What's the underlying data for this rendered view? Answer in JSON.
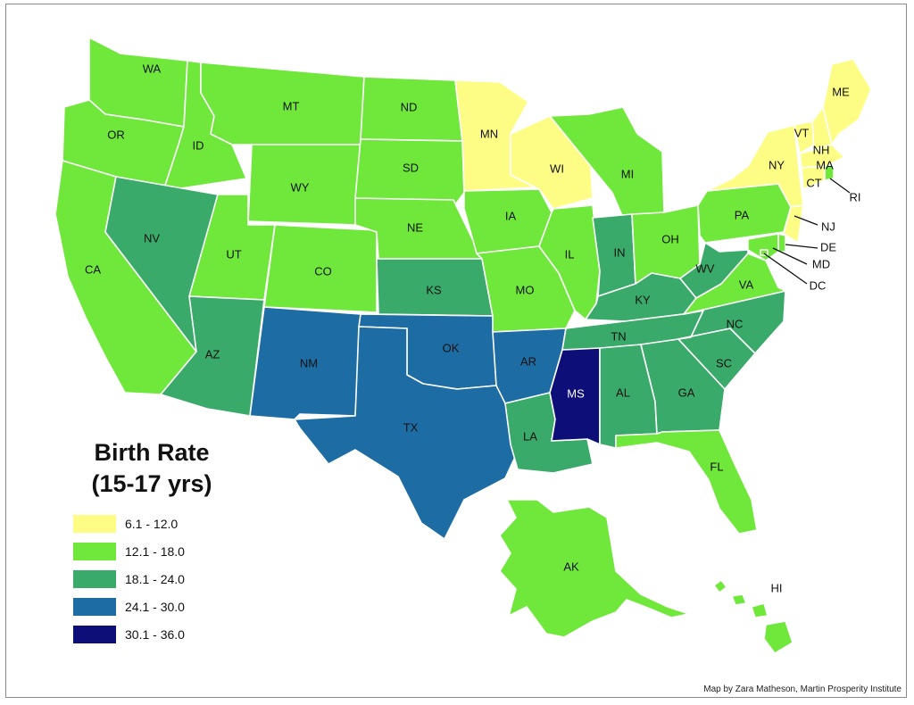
{
  "legend": {
    "title_line1": "Birth Rate",
    "title_line2": "(15-17 yrs)",
    "classes": [
      {
        "label": "6.1 - 12.0",
        "color": "#fdfd86"
      },
      {
        "label": "12.1 - 18.0",
        "color": "#6fe83b"
      },
      {
        "label": "18.1 - 24.0",
        "color": "#3aaa6a"
      },
      {
        "label": "24.1 - 30.0",
        "color": "#1d6da4"
      },
      {
        "label": "30.1 - 36.0",
        "color": "#0e0e78"
      }
    ]
  },
  "credit": "Map by Zara Matheson, Martin Prosperity Institute",
  "states": [
    {
      "code": "WA",
      "class": 1
    },
    {
      "code": "OR",
      "class": 1
    },
    {
      "code": "CA",
      "class": 1
    },
    {
      "code": "ID",
      "class": 1
    },
    {
      "code": "NV",
      "class": 2
    },
    {
      "code": "MT",
      "class": 1
    },
    {
      "code": "WY",
      "class": 1
    },
    {
      "code": "UT",
      "class": 1
    },
    {
      "code": "AZ",
      "class": 2
    },
    {
      "code": "CO",
      "class": 1
    },
    {
      "code": "NM",
      "class": 3
    },
    {
      "code": "ND",
      "class": 1
    },
    {
      "code": "SD",
      "class": 1
    },
    {
      "code": "NE",
      "class": 1
    },
    {
      "code": "KS",
      "class": 2
    },
    {
      "code": "OK",
      "class": 3
    },
    {
      "code": "TX",
      "class": 3
    },
    {
      "code": "MN",
      "class": 0
    },
    {
      "code": "IA",
      "class": 1
    },
    {
      "code": "MO",
      "class": 1
    },
    {
      "code": "AR",
      "class": 3
    },
    {
      "code": "LA",
      "class": 2
    },
    {
      "code": "WI",
      "class": 0
    },
    {
      "code": "IL",
      "class": 1
    },
    {
      "code": "MI",
      "class": 1
    },
    {
      "code": "IN",
      "class": 2
    },
    {
      "code": "OH",
      "class": 1
    },
    {
      "code": "KY",
      "class": 2
    },
    {
      "code": "TN",
      "class": 2
    },
    {
      "code": "MS",
      "class": 4
    },
    {
      "code": "AL",
      "class": 2
    },
    {
      "code": "GA",
      "class": 2
    },
    {
      "code": "FL",
      "class": 1
    },
    {
      "code": "SC",
      "class": 2
    },
    {
      "code": "NC",
      "class": 2
    },
    {
      "code": "VA",
      "class": 1
    },
    {
      "code": "WV",
      "class": 2
    },
    {
      "code": "PA",
      "class": 1
    },
    {
      "code": "NY",
      "class": 0
    },
    {
      "code": "VT",
      "class": 0
    },
    {
      "code": "NH",
      "class": 0
    },
    {
      "code": "ME",
      "class": 0
    },
    {
      "code": "MA",
      "class": 0
    },
    {
      "code": "CT",
      "class": 0
    },
    {
      "code": "RI",
      "class": 1
    },
    {
      "code": "NJ",
      "class": 0
    },
    {
      "code": "DE",
      "class": 1
    },
    {
      "code": "MD",
      "class": 1
    },
    {
      "code": "DC",
      "class": 1
    },
    {
      "code": "AK",
      "class": 1
    },
    {
      "code": "HI",
      "class": 1
    }
  ]
}
